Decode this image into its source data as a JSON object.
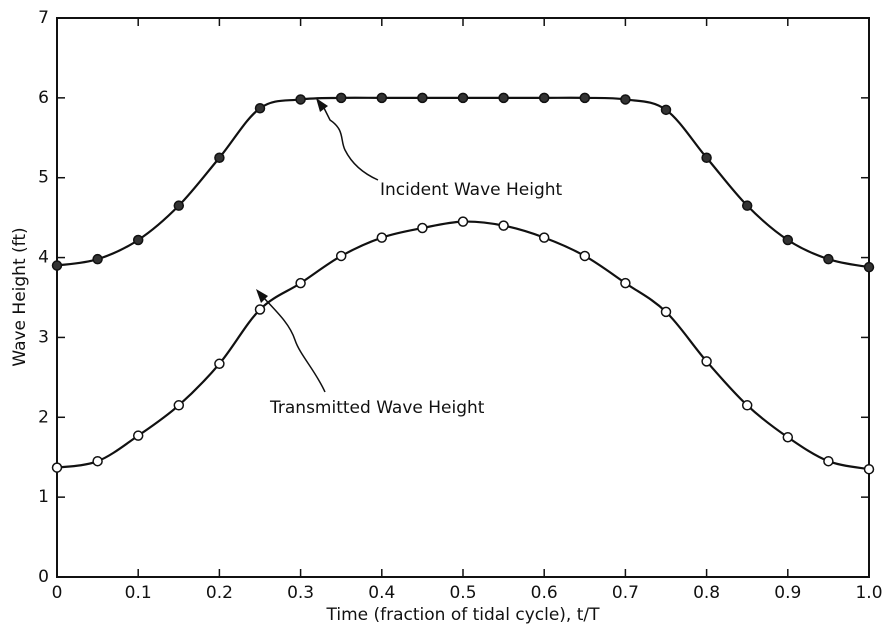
{
  "chart_data": {
    "type": "line",
    "xlabel": "Time (fraction of tidal cycle), t/T",
    "ylabel": "Wave Height (ft)",
    "x": [
      0,
      0.05,
      0.1,
      0.15,
      0.2,
      0.25,
      0.3,
      0.35,
      0.4,
      0.45,
      0.5,
      0.55,
      0.6,
      0.65,
      0.7,
      0.75,
      0.8,
      0.85,
      0.9,
      0.95,
      1.0
    ],
    "series": [
      {
        "name": "Incident Wave Height",
        "color": "#111111",
        "marker": "filled",
        "values": [
          3.9,
          3.98,
          4.22,
          4.65,
          5.25,
          5.87,
          5.98,
          6.0,
          6.0,
          6.0,
          6.0,
          6.0,
          6.0,
          6.0,
          5.98,
          5.85,
          5.25,
          4.65,
          4.22,
          3.98,
          3.88
        ]
      },
      {
        "name": "Transmitted Wave Height",
        "color": "#111111",
        "marker": "open",
        "values": [
          1.37,
          1.45,
          1.77,
          2.15,
          2.67,
          3.35,
          3.68,
          4.02,
          4.25,
          4.37,
          4.45,
          4.4,
          4.25,
          4.02,
          3.68,
          3.32,
          2.7,
          2.15,
          1.75,
          1.45,
          1.35
        ]
      }
    ],
    "xlim": [
      0,
      1
    ],
    "ylim": [
      0,
      7
    ],
    "xticks": [
      0,
      0.1,
      0.2,
      0.3,
      0.4,
      0.5,
      0.6,
      0.7,
      0.8,
      0.9,
      {
        "value": 1,
        "label": "1.0"
      }
    ],
    "yticks": [
      0,
      1,
      2,
      3,
      4,
      5,
      6,
      7
    ],
    "grid": false
  }
}
